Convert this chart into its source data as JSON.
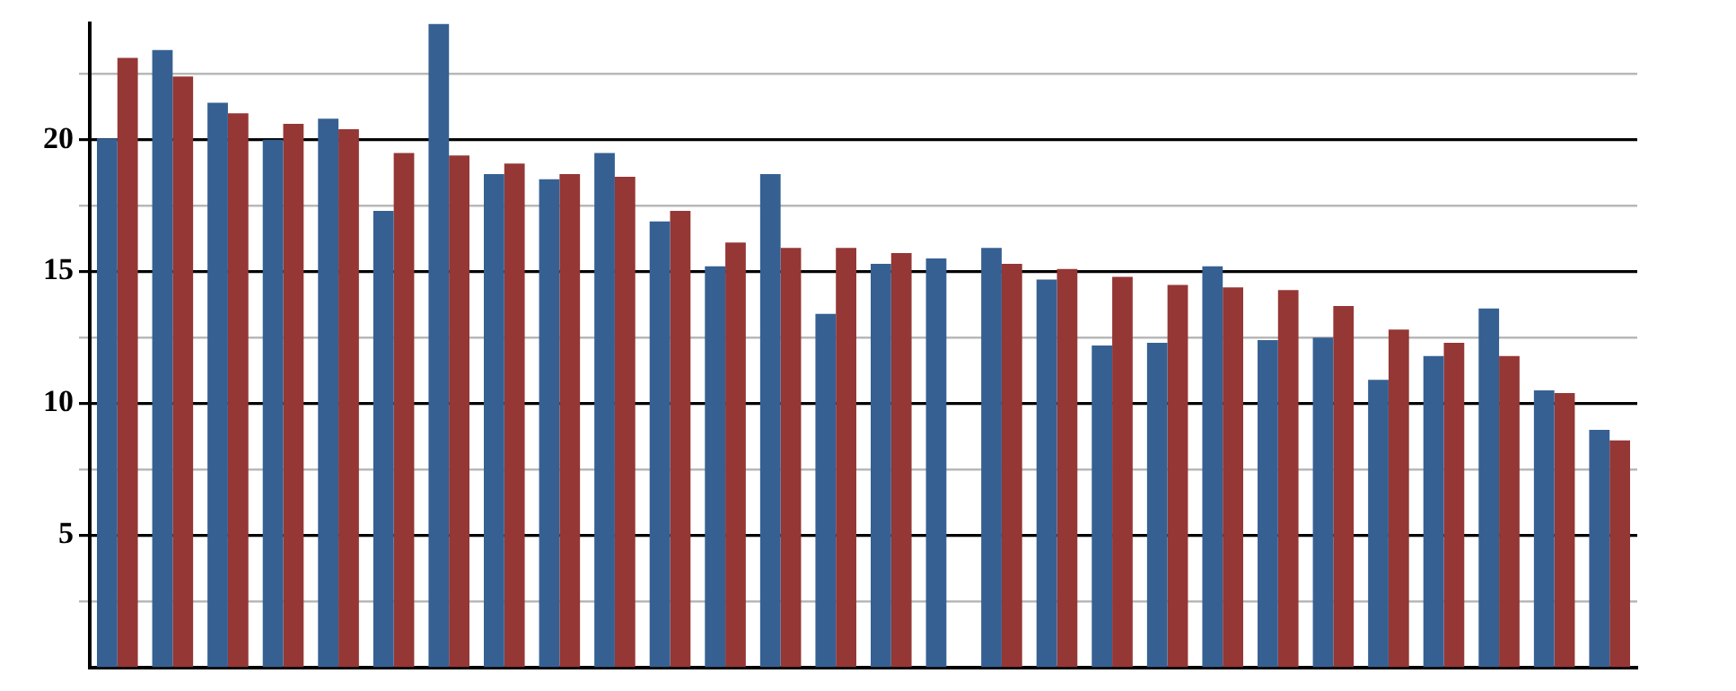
{
  "chart_data": {
    "type": "bar",
    "categories": [
      null,
      null,
      null,
      null,
      null,
      null,
      null,
      null,
      null,
      null,
      null,
      null,
      null,
      null,
      null,
      null,
      null,
      null,
      null,
      null,
      null,
      null,
      null,
      null,
      null,
      null,
      null,
      null
    ],
    "series": [
      {
        "color": "#366092",
        "values": [
          20.05,
          23.4,
          21.4,
          20.0,
          20.8,
          17.3,
          24.4,
          18.7,
          18.5,
          19.5,
          16.9,
          15.2,
          18.7,
          13.4,
          15.3,
          15.5,
          15.9,
          14.7,
          12.2,
          12.3,
          15.2,
          12.4,
          12.5,
          10.9,
          11.8,
          13.6,
          10.5,
          9.0
        ]
      },
      {
        "color": "#953735",
        "values": [
          23.1,
          22.4,
          21.0,
          20.6,
          20.4,
          19.5,
          19.4,
          19.1,
          18.7,
          18.6,
          17.3,
          16.1,
          15.9,
          15.9,
          15.7,
          null,
          15.3,
          15.1,
          14.8,
          14.5,
          14.4,
          14.3,
          13.7,
          12.8,
          12.3,
          11.8,
          10.4,
          8.6
        ]
      }
    ],
    "ylim": [
      0,
      24.4
    ],
    "yticks": [
      {
        "value": 2.5,
        "label": null
      },
      5,
      {
        "value": 7.5,
        "label": null
      },
      10,
      {
        "value": 12.5,
        "label": null
      },
      15,
      {
        "value": 17.5,
        "label": null
      },
      20,
      {
        "value": 22.5,
        "label": null
      }
    ],
    "grid": "y",
    "tick_labels": "y"
  }
}
